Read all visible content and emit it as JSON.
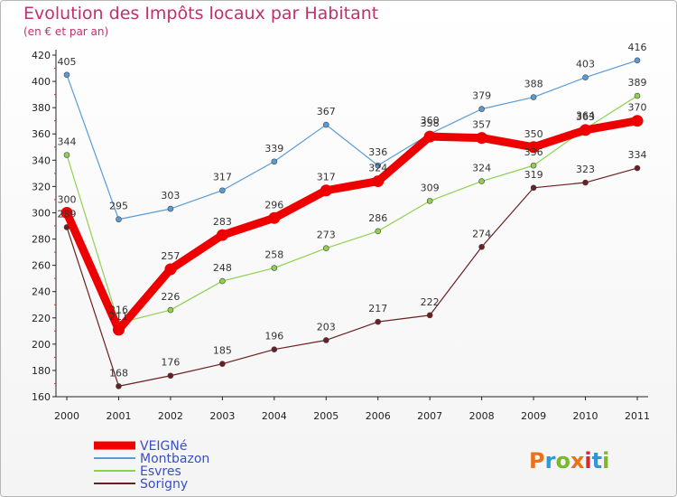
{
  "title": "Evolution des Impôts locaux par Habitant",
  "subtitle": "(en € et par an)",
  "brand": "Proxiti",
  "brand_colors": [
    "#e8731a",
    "#2a9ad6",
    "#7ab928",
    "#e8731a",
    "#d4283a",
    "#2a9ad6",
    "#7ab928"
  ],
  "chart_data": {
    "type": "line",
    "x": [
      "2000",
      "2001",
      "2002",
      "2003",
      "2004",
      "2005",
      "2006",
      "2007",
      "2008",
      "2009",
      "2010",
      "2011"
    ],
    "ylim": [
      160,
      420
    ],
    "yticks": [
      160,
      180,
      200,
      220,
      240,
      260,
      280,
      300,
      320,
      340,
      360,
      380,
      400,
      420
    ],
    "grid": false,
    "legend_position": "bottom-left",
    "series": [
      {
        "name": "VEIGNé",
        "color": "#ee0000",
        "values": [
          300,
          211,
          257,
          283,
          296,
          317,
          324,
          358,
          357,
          350,
          363,
          370
        ],
        "labels": [
          "300",
          "211",
          "257",
          "283",
          "296",
          "317",
          "324",
          "358",
          "357",
          "350",
          "363",
          "370"
        ]
      },
      {
        "name": "Montbazon",
        "color": "#5a9bd5",
        "values": [
          405,
          295,
          303,
          317,
          339,
          367,
          336,
          360,
          379,
          388,
          403,
          416
        ],
        "labels": [
          "405",
          "295",
          "303",
          "317",
          "339",
          "367",
          "336",
          "360",
          "379",
          "388",
          "403",
          "416"
        ]
      },
      {
        "name": "Esvres",
        "color": "#8fd14f",
        "values": [
          344,
          216,
          226,
          248,
          258,
          273,
          286,
          309,
          324,
          336,
          364,
          389
        ],
        "labels": [
          "344",
          "216",
          "226",
          "248",
          "258",
          "273",
          "286",
          "309",
          "324",
          "336",
          "364",
          "389"
        ]
      },
      {
        "name": "Sorigny",
        "color": "#6b1f22",
        "values": [
          289,
          168,
          176,
          185,
          196,
          203,
          217,
          222,
          274,
          319,
          323,
          334
        ],
        "labels": [
          "289",
          "168",
          "176",
          "185",
          "196",
          "203",
          "217",
          "222",
          "274",
          "319",
          "323",
          "334"
        ]
      }
    ]
  }
}
